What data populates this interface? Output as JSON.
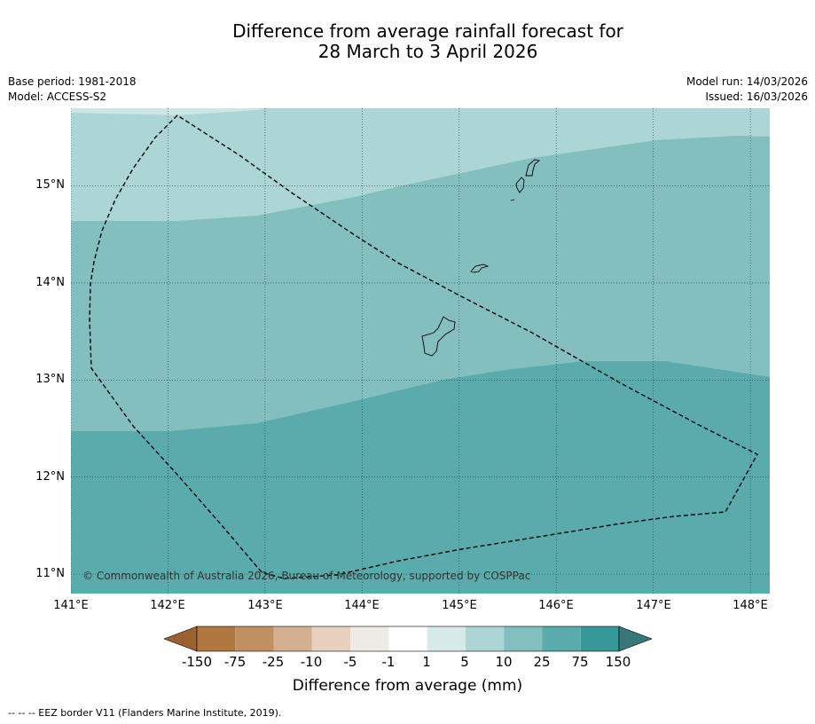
{
  "title_line1": "Difference from average rainfall forecast for",
  "title_line2": "28 March to 3 April 2026",
  "base_period": "Base period: 1981-2018",
  "model": "Model: ACCESS-S2",
  "model_run": "Model run: 14/03/2026",
  "issued": "Issued: 16/03/2026",
  "copyright": "© Commonwealth of Australia 2026, Bureau of Meteorology, supported by COSPPac",
  "footnote": "--  --  -- EEZ border V11 (Flanders Marine Institute, 2019).",
  "map": {
    "lon_range": [
      141.0,
      148.2
    ],
    "lat_range": [
      10.8,
      15.8
    ],
    "x_ticks": [
      "141°E",
      "142°E",
      "143°E",
      "144°E",
      "145°E",
      "146°E",
      "147°E",
      "148°E"
    ],
    "y_ticks": [
      "15°N",
      "14°N",
      "13°N",
      "12°N",
      "11°N"
    ],
    "grid": "dotted",
    "rainfall_bands": [
      {
        "range": "5 to 10",
        "color": "#acd5d5"
      },
      {
        "range": "10 to 25",
        "color": "#84bfbf"
      },
      {
        "range": "25 to 75",
        "color": "#5aabab"
      }
    ],
    "features": [
      "eez-border",
      "guam",
      "rota",
      "tinian",
      "saipan"
    ]
  },
  "colorbar": {
    "ticks": [
      "-150",
      "-75",
      "-25",
      "-10",
      "-5",
      "-1",
      "1",
      "5",
      "10",
      "25",
      "75",
      "150"
    ],
    "colors": [
      "#b07840",
      "#c19062",
      "#d4af90",
      "#e7d0be",
      "#eeeae6",
      "#ffffff",
      "#d5eae9",
      "#acd5d5",
      "#84bfbf",
      "#5aabab",
      "#369898"
    ],
    "under_color": "#9b6230",
    "over_color": "#377777",
    "label": "Difference from average (mm)"
  }
}
